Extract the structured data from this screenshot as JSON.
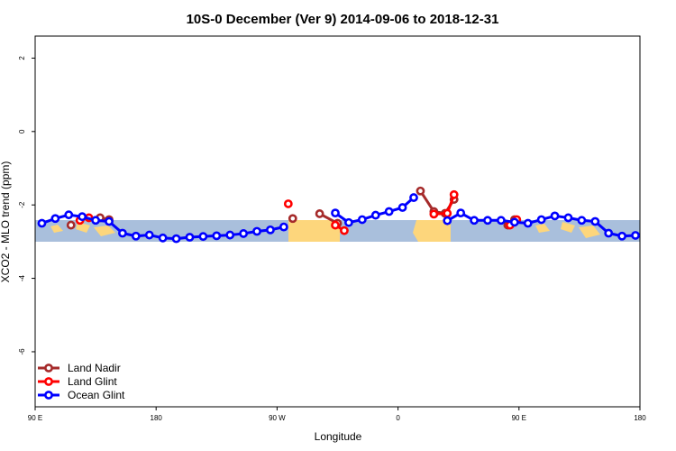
{
  "chart_data": {
    "type": "line",
    "title": "10S-0 December (Ver 9)   2014-09-06 to 2018-12-31",
    "xlabel": "Longitude",
    "ylabel": "XCO2 - MLO trend (ppm)",
    "xlim": [
      -90,
      180
    ],
    "ylim": [
      -7.5,
      2.6
    ],
    "x_ticks": [
      {
        "value": -90,
        "label": "90 E"
      },
      {
        "value": -36,
        "label": "180"
      },
      {
        "value": 18,
        "label": "90 W"
      },
      {
        "value": 72,
        "label": "0"
      },
      {
        "value": 126,
        "label": "90 E"
      },
      {
        "value": 180,
        "label": "180"
      }
    ],
    "y_ticks": [
      {
        "value": 2,
        "label": "2"
      },
      {
        "value": 0,
        "label": "0"
      },
      {
        "value": -2,
        "label": "-2"
      },
      {
        "value": -4,
        "label": "-4"
      },
      {
        "value": -6,
        "label": "-6"
      }
    ],
    "legend_position": "bottom-left",
    "series": [
      {
        "name": "Land Nadir",
        "color": "#a52a2a",
        "points": [
          [
            -74,
            -2.55
          ],
          [
            -61,
            -2.35
          ],
          [
            -57,
            -2.4
          ],
          [
            25,
            -2.37
          ],
          [
            37,
            -2.24
          ],
          [
            45,
            -2.5
          ],
          [
            82,
            -1.62
          ],
          [
            88,
            -2.18
          ],
          [
            93,
            -2.23
          ],
          [
            97,
            -1.85
          ],
          [
            121,
            -2.55
          ],
          [
            124,
            -2.4
          ]
        ]
      },
      {
        "name": "Land Glint",
        "color": "#ff0000",
        "points": [
          [
            -70,
            -2.42
          ],
          [
            -66,
            -2.35
          ],
          [
            23,
            -1.97
          ],
          [
            44,
            -2.55
          ],
          [
            48,
            -2.7
          ],
          [
            88,
            -2.25
          ],
          [
            94,
            -2.23
          ],
          [
            97,
            -1.72
          ],
          [
            122,
            -2.55
          ],
          [
            125,
            -2.4
          ]
        ]
      },
      {
        "name": "Ocean Glint",
        "color": "#0000ff",
        "points": [
          [
            -87,
            -2.5
          ],
          [
            -81,
            -2.37
          ],
          [
            -75,
            -2.27
          ],
          [
            -69,
            -2.32
          ],
          [
            -63,
            -2.42
          ],
          [
            -57,
            -2.45
          ],
          [
            -51,
            -2.77
          ],
          [
            -45,
            -2.85
          ],
          [
            -39,
            -2.82
          ],
          [
            -33,
            -2.9
          ],
          [
            -27,
            -2.92
          ],
          [
            -21,
            -2.88
          ],
          [
            -15,
            -2.86
          ],
          [
            -9,
            -2.84
          ],
          [
            -3,
            -2.82
          ],
          [
            3,
            -2.78
          ],
          [
            9,
            -2.72
          ],
          [
            15,
            -2.68
          ],
          [
            21,
            -2.6
          ],
          [
            44,
            -2.22
          ],
          [
            50,
            -2.48
          ],
          [
            56,
            -2.4
          ],
          [
            62,
            -2.28
          ],
          [
            68,
            -2.18
          ],
          [
            74,
            -2.07
          ],
          [
            79,
            -1.8
          ],
          [
            94,
            -2.43
          ],
          [
            100,
            -2.22
          ],
          [
            106,
            -2.42
          ],
          [
            112,
            -2.42
          ],
          [
            118,
            -2.42
          ],
          [
            124,
            -2.47
          ],
          [
            130,
            -2.5
          ],
          [
            136,
            -2.4
          ],
          [
            142,
            -2.3
          ],
          [
            148,
            -2.35
          ],
          [
            154,
            -2.42
          ],
          [
            160,
            -2.45
          ],
          [
            166,
            -2.77
          ],
          [
            172,
            -2.85
          ],
          [
            178,
            -2.83
          ]
        ]
      }
    ]
  }
}
